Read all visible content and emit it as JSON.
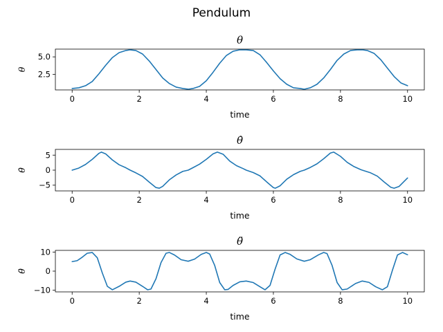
{
  "figure": {
    "title": "Pendulum",
    "line_color": "#1f77b4"
  },
  "chart_data": [
    {
      "type": "line",
      "title": "θ",
      "xlabel": "time",
      "ylabel": "θ",
      "xlim": [
        -0.5,
        10.5
      ],
      "ylim": [
        0.3,
        6.1
      ],
      "xticks": [
        0,
        2,
        4,
        6,
        8,
        10
      ],
      "xtick_labels": [
        "0",
        "2",
        "4",
        "6",
        "8",
        "10"
      ],
      "yticks": [
        2.5,
        5.0
      ],
      "ytick_labels": [
        "2.5",
        "5.0"
      ],
      "grid": false,
      "series": [
        {
          "x": [
            0,
            0.2,
            0.4,
            0.6,
            0.8,
            1.0,
            1.2,
            1.4,
            1.6,
            1.73,
            1.9,
            2.1,
            2.3,
            2.5,
            2.7,
            2.9,
            3.1,
            3.3,
            3.46,
            3.6,
            3.8,
            4.0,
            4.2,
            4.4,
            4.6,
            4.8,
            5.0,
            5.19,
            5.4,
            5.6,
            5.8,
            6.0,
            6.2,
            6.4,
            6.6,
            6.8,
            6.92,
            7.1,
            7.3,
            7.5,
            7.7,
            7.9,
            8.1,
            8.3,
            8.5,
            8.65,
            8.8,
            9.0,
            9.2,
            9.4,
            9.6,
            9.8,
            10.0
          ],
          "y": [
            0.5,
            0.6,
            0.9,
            1.5,
            2.6,
            3.8,
            4.9,
            5.6,
            5.9,
            6.0,
            5.9,
            5.4,
            4.4,
            3.2,
            2.0,
            1.2,
            0.7,
            0.5,
            0.4,
            0.5,
            0.8,
            1.6,
            2.8,
            4.1,
            5.2,
            5.8,
            6.0,
            6.0,
            5.9,
            5.3,
            4.2,
            3.0,
            1.9,
            1.1,
            0.6,
            0.5,
            0.4,
            0.6,
            1.1,
            2.0,
            3.2,
            4.5,
            5.4,
            5.9,
            6.0,
            6.0,
            5.9,
            5.5,
            4.6,
            3.4,
            2.2,
            1.3,
            0.9
          ]
        }
      ]
    },
    {
      "type": "line",
      "title": "θ̇",
      "xlabel": "time",
      "ylabel": "θ̇",
      "xlim": [
        -0.5,
        10.5
      ],
      "ylim": [
        -6.9,
        6.9
      ],
      "xticks": [
        0,
        2,
        4,
        6,
        8,
        10
      ],
      "xtick_labels": [
        "0",
        "2",
        "4",
        "6",
        "8",
        "10"
      ],
      "yticks": [
        -5,
        0,
        5
      ],
      "ytick_labels": [
        "−5",
        "0",
        "5"
      ],
      "grid": false,
      "series": [
        {
          "x": [
            0,
            0.2,
            0.4,
            0.6,
            0.8,
            0.87,
            1.0,
            1.2,
            1.4,
            1.6,
            1.73,
            1.9,
            2.1,
            2.3,
            2.5,
            2.6,
            2.7,
            2.9,
            3.1,
            3.3,
            3.46,
            3.6,
            3.8,
            4.0,
            4.2,
            4.33,
            4.5,
            4.7,
            4.9,
            5.1,
            5.19,
            5.4,
            5.6,
            5.8,
            6.0,
            6.06,
            6.2,
            6.4,
            6.6,
            6.8,
            6.92,
            7.1,
            7.3,
            7.5,
            7.7,
            7.8,
            8.0,
            8.2,
            8.4,
            8.6,
            8.65,
            8.9,
            9.1,
            9.3,
            9.5,
            9.6,
            9.75,
            10.0
          ],
          "y": [
            0,
            0.7,
            1.9,
            3.6,
            5.6,
            6.0,
            5.4,
            3.4,
            1.8,
            0.8,
            0,
            -0.9,
            -2.1,
            -4.0,
            -5.8,
            -6.0,
            -5.4,
            -3.2,
            -1.6,
            -0.4,
            0,
            0.8,
            2.0,
            3.6,
            5.4,
            6.0,
            5.3,
            3.0,
            1.5,
            0.5,
            0,
            -0.8,
            -1.9,
            -3.9,
            -5.8,
            -6.0,
            -5.2,
            -3.0,
            -1.5,
            -0.4,
            0,
            0.9,
            2.1,
            3.8,
            5.7,
            6.0,
            4.6,
            2.6,
            1.2,
            0.2,
            0,
            -0.9,
            -2.0,
            -3.9,
            -5.7,
            -6.0,
            -5.4,
            -2.6
          ]
        }
      ]
    },
    {
      "type": "line",
      "title": "θ̈",
      "xlabel": "time",
      "ylabel": "θ̈",
      "xlim": [
        -0.5,
        10.5
      ],
      "ylim": [
        -10.9,
        10.9
      ],
      "xticks": [
        0,
        2,
        4,
        6,
        8,
        10
      ],
      "xtick_labels": [
        "0",
        "2",
        "4",
        "6",
        "8",
        "10"
      ],
      "yticks": [
        -10,
        0,
        10
      ],
      "ytick_labels": [
        "−10",
        "0",
        "10"
      ],
      "grid": false,
      "series": [
        {
          "x": [
            0,
            0.15,
            0.3,
            0.45,
            0.6,
            0.75,
            0.9,
            1.05,
            1.2,
            1.4,
            1.6,
            1.73,
            1.9,
            2.1,
            2.25,
            2.35,
            2.5,
            2.65,
            2.8,
            2.9,
            3.05,
            3.25,
            3.46,
            3.65,
            3.85,
            4.0,
            4.1,
            4.25,
            4.4,
            4.55,
            4.65,
            4.8,
            5.0,
            5.19,
            5.4,
            5.6,
            5.75,
            5.9,
            6.05,
            6.2,
            6.35,
            6.5,
            6.7,
            6.92,
            7.1,
            7.35,
            7.5,
            7.6,
            7.75,
            7.9,
            8.05,
            8.2,
            8.45,
            8.65,
            8.85,
            9.05,
            9.25,
            9.4,
            9.55,
            9.7,
            9.85,
            10.0
          ],
          "y": [
            5.0,
            5.5,
            7.3,
            9.4,
            9.8,
            7.0,
            -1.0,
            -8.0,
            -9.8,
            -8.0,
            -5.8,
            -5.2,
            -5.8,
            -8.0,
            -9.8,
            -9.4,
            -4.0,
            4.5,
            9.4,
            9.8,
            8.5,
            6.0,
            5.2,
            6.3,
            8.8,
            9.8,
            9.0,
            3.0,
            -6.0,
            -9.8,
            -9.6,
            -7.5,
            -5.6,
            -5.2,
            -6.0,
            -8.2,
            -9.8,
            -7.5,
            1.0,
            8.5,
            9.8,
            8.8,
            6.4,
            5.2,
            6.0,
            8.6,
            9.8,
            9.2,
            3.0,
            -6.0,
            -9.8,
            -9.4,
            -6.5,
            -5.2,
            -5.9,
            -8.2,
            -9.8,
            -8.2,
            0.5,
            8.5,
            9.8,
            8.6
          ]
        }
      ]
    }
  ]
}
